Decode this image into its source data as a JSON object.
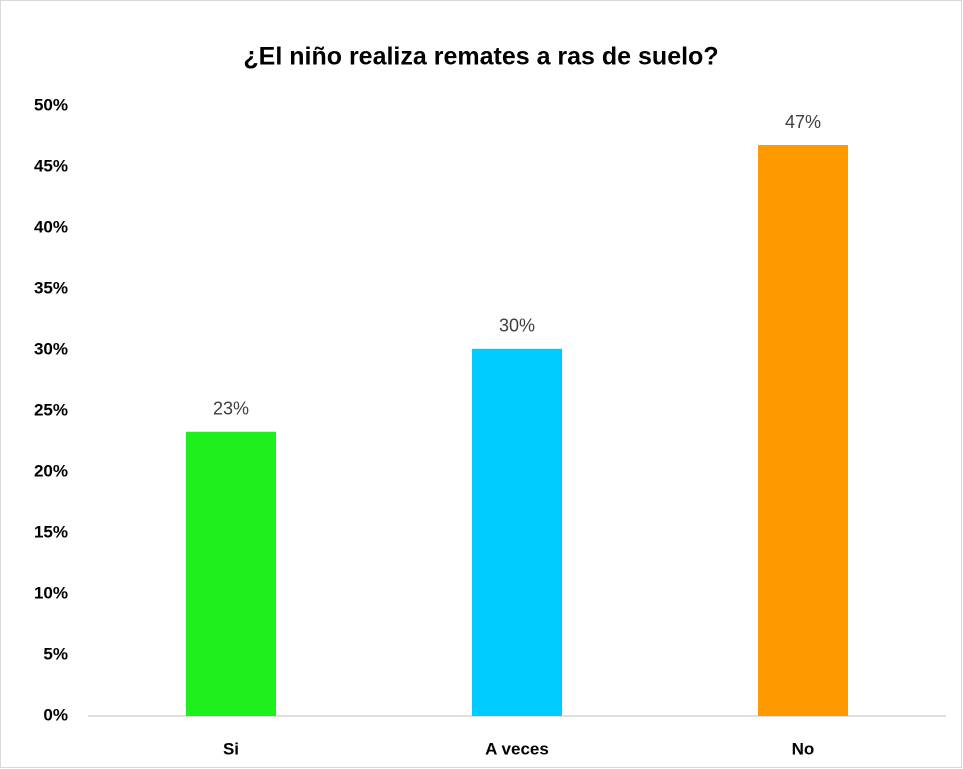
{
  "chart_data": {
    "type": "bar",
    "title": "¿El niño realiza remates a ras de suelo?",
    "categories": [
      "Si",
      "A veces",
      "No"
    ],
    "values": [
      23.3,
      30.1,
      46.8
    ],
    "value_labels": [
      "23%",
      "30%",
      "47%"
    ],
    "colors": [
      "#1ef01e",
      "#00ccff",
      "#ff9900"
    ],
    "ylim": [
      0,
      50
    ],
    "yticks": [
      {
        "value": 0,
        "label": "0%"
      },
      {
        "value": 5,
        "label": "5%"
      },
      {
        "value": 10,
        "label": "10%"
      },
      {
        "value": 15,
        "label": "15%"
      },
      {
        "value": 20,
        "label": "20%"
      },
      {
        "value": 25,
        "label": "25%"
      },
      {
        "value": 30,
        "label": "30%"
      },
      {
        "value": 35,
        "label": "35%"
      },
      {
        "value": 40,
        "label": "40%"
      },
      {
        "value": 45,
        "label": "45%"
      },
      {
        "value": 50,
        "label": "50%"
      }
    ],
    "grid": false
  }
}
